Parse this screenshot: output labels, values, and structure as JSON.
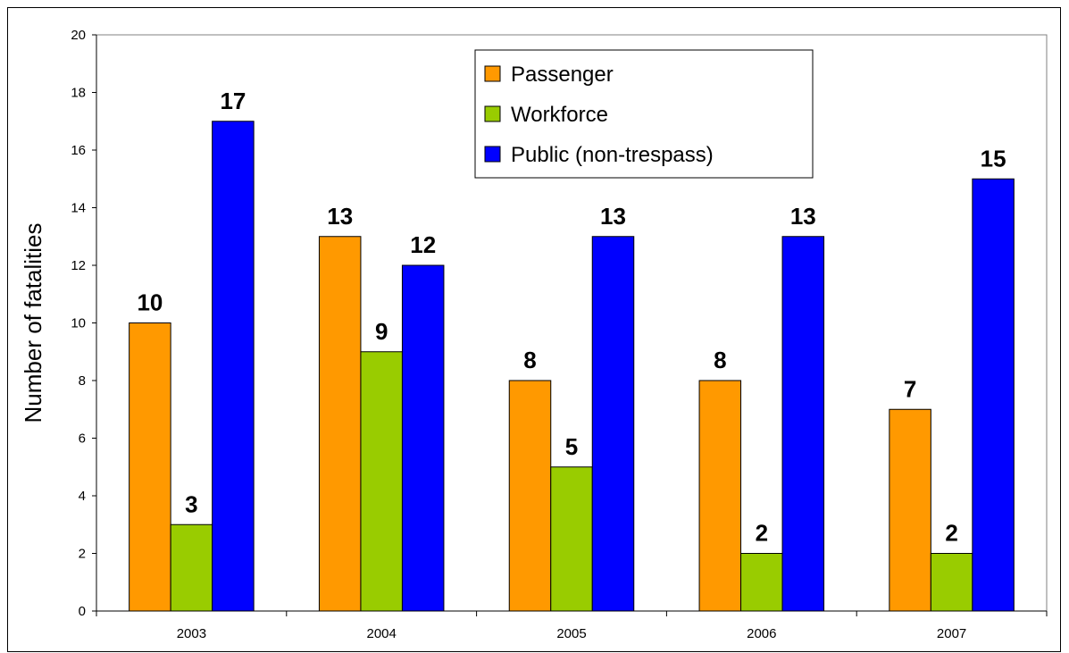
{
  "chart_data": {
    "type": "bar",
    "categories": [
      "2003",
      "2004",
      "2005",
      "2006",
      "2007"
    ],
    "series": [
      {
        "name": "Passenger",
        "values": [
          10,
          13,
          8,
          8,
          7
        ],
        "color": "#FF9900"
      },
      {
        "name": "Workforce",
        "values": [
          3,
          9,
          5,
          2,
          2
        ],
        "color": "#99CC00"
      },
      {
        "name": "Public (non-trespass)",
        "values": [
          17,
          12,
          13,
          13,
          15
        ],
        "color": "#0000FF"
      }
    ],
    "ylabel": "Number of fatalities",
    "xlabel": "",
    "ylim": [
      0,
      20
    ],
    "yticks": [
      0,
      2,
      4,
      6,
      8,
      10,
      12,
      14,
      16,
      18,
      20
    ],
    "grid": false,
    "legend_position": "top-center",
    "data_labels": true
  }
}
